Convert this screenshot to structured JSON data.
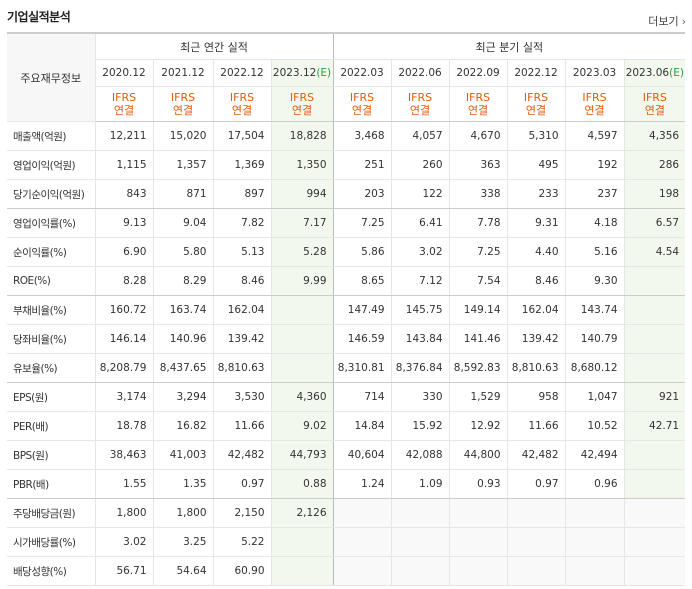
{
  "title": "기업실적분석",
  "more_label": "더보기",
  "row_header_label": "주요재무정보",
  "annual_header": "최근 연간 실적",
  "quarter_header": "최근 분기 실적",
  "ifrs_line1": "IFRS",
  "ifrs_line2": "연결",
  "estimate_mark": "(E)",
  "annual_dates": [
    "2020.12",
    "2021.12",
    "2022.12",
    "2023.12"
  ],
  "quarter_dates": [
    "2022.03",
    "2022.06",
    "2022.09",
    "2022.12",
    "2023.03",
    "2023.06"
  ],
  "rows": [
    {
      "label": "매출액(억원)",
      "values": [
        "12,211",
        "15,020",
        "17,504",
        "18,828",
        "3,468",
        "4,057",
        "4,670",
        "5,310",
        "4,597",
        "4,356"
      ]
    },
    {
      "label": "영업이익(억원)",
      "values": [
        "1,115",
        "1,357",
        "1,369",
        "1,350",
        "251",
        "260",
        "363",
        "495",
        "192",
        "286"
      ]
    },
    {
      "label": "당기순이익(억원)",
      "values": [
        "843",
        "871",
        "897",
        "994",
        "203",
        "122",
        "338",
        "233",
        "237",
        "198"
      ]
    },
    {
      "label": "영업이익률(%)",
      "values": [
        "9.13",
        "9.04",
        "7.82",
        "7.17",
        "7.25",
        "6.41",
        "7.78",
        "9.31",
        "4.18",
        "6.57"
      ]
    },
    {
      "label": "순이익률(%)",
      "values": [
        "6.90",
        "5.80",
        "5.13",
        "5.28",
        "5.86",
        "3.02",
        "7.25",
        "4.40",
        "5.16",
        "4.54"
      ]
    },
    {
      "label": "ROE(%)",
      "values": [
        "8.28",
        "8.29",
        "8.46",
        "9.99",
        "8.65",
        "7.12",
        "7.54",
        "8.46",
        "9.30",
        ""
      ]
    },
    {
      "label": "부채비율(%)",
      "values": [
        "160.72",
        "163.74",
        "162.04",
        "",
        "147.49",
        "145.75",
        "149.14",
        "162.04",
        "143.74",
        ""
      ]
    },
    {
      "label": "당좌비율(%)",
      "values": [
        "146.14",
        "140.96",
        "139.42",
        "",
        "146.59",
        "143.84",
        "141.46",
        "139.42",
        "140.79",
        ""
      ]
    },
    {
      "label": "유보율(%)",
      "values": [
        "8,208.79",
        "8,437.65",
        "8,810.63",
        "",
        "8,310.81",
        "8,376.84",
        "8,592.83",
        "8,810.63",
        "8,680.12",
        ""
      ]
    },
    {
      "label": "EPS(원)",
      "values": [
        "3,174",
        "3,294",
        "3,530",
        "4,360",
        "714",
        "330",
        "1,529",
        "958",
        "1,047",
        "921"
      ]
    },
    {
      "label": "PER(배)",
      "values": [
        "18.78",
        "16.82",
        "11.66",
        "9.02",
        "14.84",
        "15.92",
        "12.92",
        "11.66",
        "10.52",
        "42.71"
      ]
    },
    {
      "label": "BPS(원)",
      "values": [
        "38,463",
        "41,003",
        "42,482",
        "44,793",
        "40,604",
        "42,088",
        "44,800",
        "42,482",
        "42,494",
        ""
      ]
    },
    {
      "label": "PBR(배)",
      "values": [
        "1.55",
        "1.35",
        "0.97",
        "0.88",
        "1.24",
        "1.09",
        "0.93",
        "0.97",
        "0.96",
        ""
      ]
    },
    {
      "label": "주당배당금(원)",
      "values": [
        "1,800",
        "1,800",
        "2,150",
        "2,126",
        "",
        "",
        "",
        "",
        "",
        ""
      ]
    },
    {
      "label": "시가배당률(%)",
      "values": [
        "3.02",
        "3.25",
        "5.22",
        "",
        "",
        "",
        "",
        "",
        "",
        ""
      ]
    },
    {
      "label": "배당성향(%)",
      "values": [
        "56.71",
        "54.64",
        "60.90",
        "",
        "",
        "",
        "",
        "",
        "",
        ""
      ]
    }
  ]
}
